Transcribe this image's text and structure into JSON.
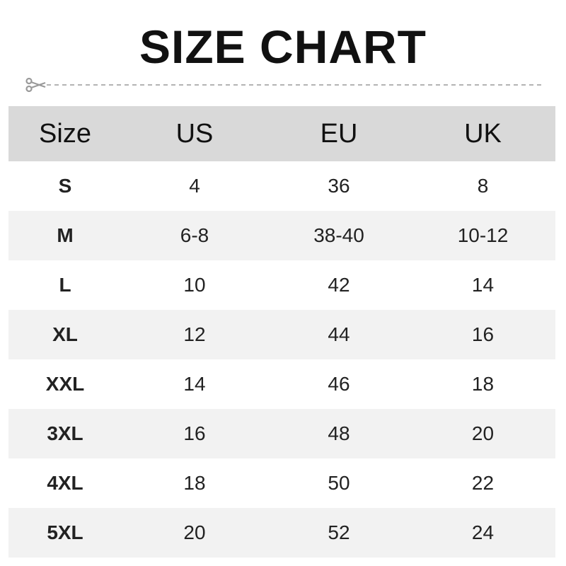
{
  "title": "SIZE CHART",
  "colors": {
    "header_bg": "#d9d9d9",
    "alt_row_bg": "#f2f2f2",
    "cut_line": "#9a9a9a"
  },
  "table": {
    "headers": [
      "Size",
      "US",
      "EU",
      "UK"
    ],
    "rows": [
      [
        "S",
        "4",
        "36",
        "8"
      ],
      [
        "M",
        "6-8",
        "38-40",
        "10-12"
      ],
      [
        "L",
        "10",
        "42",
        "14"
      ],
      [
        "XL",
        "12",
        "44",
        "16"
      ],
      [
        "XXL",
        "14",
        "46",
        "18"
      ],
      [
        "3XL",
        "16",
        "48",
        "20"
      ],
      [
        "4XL",
        "18",
        "50",
        "22"
      ],
      [
        "5XL",
        "20",
        "52",
        "24"
      ]
    ]
  }
}
